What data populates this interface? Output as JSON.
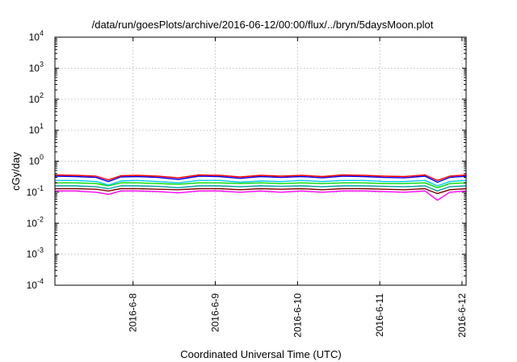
{
  "chart_data": {
    "type": "line",
    "title": "/data/run/goesPlots/archive/2016-06-12/00:00/flux/../bryn/5daysMoon.plot",
    "xlabel": "Coordinated Universal Time (UTC)",
    "ylabel": "cGy/day",
    "yscale": "log",
    "ylim": [
      0.0001,
      10000
    ],
    "xlim_days": [
      7.05,
      12.05
    ],
    "grid": true,
    "x_ticks": [
      {
        "label": "2016-6-8",
        "day": 8
      },
      {
        "label": "2016-6-9",
        "day": 9
      },
      {
        "label": "2016-6-10",
        "day": 10
      },
      {
        "label": "2016-6-11",
        "day": 11
      },
      {
        "label": "2016-6-12",
        "day": 12
      }
    ],
    "y_ticks": [
      {
        "base": "10",
        "exp": "-4",
        "value": 0.0001
      },
      {
        "base": "10",
        "exp": "-3",
        "value": 0.001
      },
      {
        "base": "10",
        "exp": "-2",
        "value": 0.01
      },
      {
        "base": "10",
        "exp": "-1",
        "value": 0.1
      },
      {
        "base": "10",
        "exp": "0",
        "value": 1
      },
      {
        "base": "10",
        "exp": "1",
        "value": 10
      },
      {
        "base": "10",
        "exp": "2",
        "value": 100
      },
      {
        "base": "10",
        "exp": "3",
        "value": 1000
      },
      {
        "base": "10",
        "exp": "4",
        "value": 10000
      }
    ],
    "x_days": [
      7.05,
      7.3,
      7.55,
      7.7,
      7.85,
      8.05,
      8.3,
      8.55,
      8.8,
      9.05,
      9.3,
      9.55,
      9.8,
      10.05,
      10.3,
      10.55,
      10.8,
      11.05,
      11.3,
      11.55,
      11.7,
      11.85,
      12.05
    ],
    "series": [
      {
        "color": "#ff00ff",
        "values": [
          0.11,
          0.11,
          0.1,
          0.085,
          0.11,
          0.11,
          0.105,
          0.095,
          0.11,
          0.11,
          0.1,
          0.11,
          0.1,
          0.11,
          0.1,
          0.11,
          0.11,
          0.105,
          0.1,
          0.11,
          0.055,
          0.1,
          0.11
        ]
      },
      {
        "color": "#800000",
        "values": [
          0.13,
          0.13,
          0.125,
          0.11,
          0.13,
          0.13,
          0.125,
          0.12,
          0.13,
          0.13,
          0.12,
          0.13,
          0.125,
          0.13,
          0.12,
          0.13,
          0.13,
          0.125,
          0.12,
          0.13,
          0.09,
          0.12,
          0.13
        ]
      },
      {
        "color": "#00a0a0",
        "values": [
          0.16,
          0.16,
          0.15,
          0.13,
          0.16,
          0.16,
          0.155,
          0.14,
          0.16,
          0.16,
          0.15,
          0.16,
          0.155,
          0.16,
          0.15,
          0.16,
          0.16,
          0.155,
          0.15,
          0.16,
          0.11,
          0.15,
          0.16
        ]
      },
      {
        "color": "#00dd00",
        "values": [
          0.2,
          0.2,
          0.19,
          0.16,
          0.2,
          0.2,
          0.19,
          0.18,
          0.2,
          0.2,
          0.19,
          0.2,
          0.19,
          0.2,
          0.19,
          0.2,
          0.2,
          0.19,
          0.19,
          0.2,
          0.14,
          0.19,
          0.2
        ]
      },
      {
        "color": "#00c8ff",
        "values": [
          0.24,
          0.24,
          0.22,
          0.17,
          0.23,
          0.24,
          0.22,
          0.2,
          0.24,
          0.24,
          0.21,
          0.23,
          0.22,
          0.24,
          0.22,
          0.24,
          0.24,
          0.22,
          0.22,
          0.24,
          0.16,
          0.22,
          0.24
        ]
      },
      {
        "color": "#0000ff",
        "values": [
          0.33,
          0.32,
          0.3,
          0.22,
          0.31,
          0.32,
          0.3,
          0.26,
          0.33,
          0.32,
          0.28,
          0.32,
          0.3,
          0.32,
          0.29,
          0.33,
          0.32,
          0.3,
          0.29,
          0.33,
          0.21,
          0.3,
          0.33
        ]
      },
      {
        "color": "#ff0000",
        "values": [
          0.36,
          0.35,
          0.33,
          0.25,
          0.34,
          0.35,
          0.33,
          0.29,
          0.36,
          0.35,
          0.31,
          0.35,
          0.33,
          0.35,
          0.32,
          0.36,
          0.35,
          0.33,
          0.32,
          0.36,
          0.24,
          0.33,
          0.36
        ]
      }
    ]
  }
}
